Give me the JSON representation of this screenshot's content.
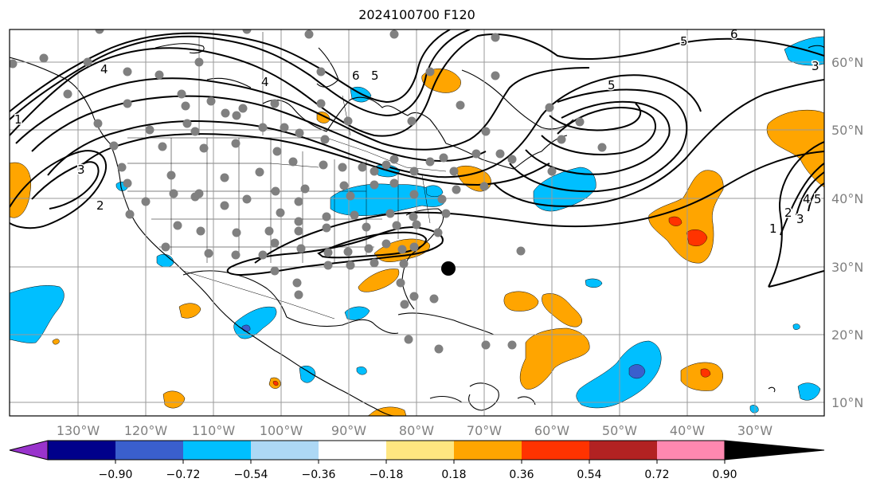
{
  "title": "2024100700 F120",
  "lon_labels": [
    "130°W",
    "120°W",
    "110°W",
    "100°W",
    "90°W",
    "80°W",
    "70°W",
    "60°W",
    "50°W",
    "40°W",
    "30°W"
  ],
  "lat_labels": [
    "60°N",
    "50°N",
    "40°N",
    "30°N",
    "20°N",
    "10°N"
  ],
  "colorbar": {
    "ticks": [
      "−0.90",
      "−0.72",
      "−0.54",
      "−0.36",
      "−0.18",
      "0.18",
      "0.36",
      "0.54",
      "0.72",
      "0.90"
    ],
    "colors": [
      "#9933cc",
      "#00008b",
      "#3a5fcd",
      "#00bfff",
      "#add8f5",
      "#ffffff",
      "#ffe680",
      "#ffa500",
      "#ff3300",
      "#b22222",
      "#ff88b0"
    ]
  },
  "contour_labels": [
    "1",
    "2",
    "3",
    "4",
    "5",
    "6",
    "4",
    "5",
    "6",
    "5",
    "4",
    "3",
    "2",
    "1",
    "5",
    "3"
  ],
  "colors": {
    "contour": "#000000",
    "station": "#808080",
    "grid": "#9a9a9a",
    "land": "#000000",
    "marker": "#000000"
  }
}
